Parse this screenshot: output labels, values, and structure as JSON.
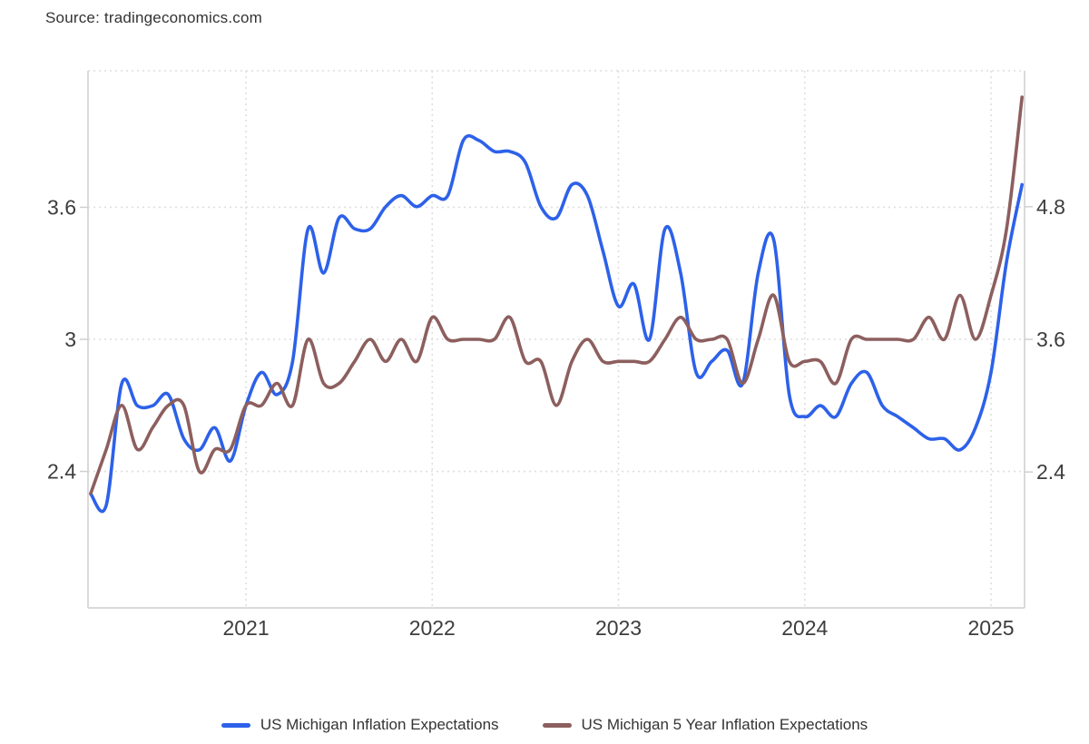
{
  "source": {
    "text": "Source: tradingeconomics.com"
  },
  "legend": {
    "items": [
      {
        "label": "US Michigan Inflation Expectations",
        "color": "#2d61e9"
      },
      {
        "label": "US Michigan 5 Year Inflation Expectations",
        "color": "#8c5f5e"
      }
    ]
  },
  "chart_data": {
    "type": "line",
    "title": "",
    "xlabel": "",
    "ylabel": "",
    "x_unit": "month",
    "x_start": "2020-03",
    "x_end": "2025-03",
    "grid": "dotted",
    "legend_position": "bottom",
    "x_tick_labels": [
      "2021",
      "2022",
      "2023",
      "2024",
      "2025"
    ],
    "x_tick_month_index": [
      10,
      22,
      34,
      46,
      58
    ],
    "left_axis": {
      "min": 1.78,
      "max": 4.22,
      "ticks": [
        3.6,
        3,
        2.4
      ],
      "tick_labels": [
        "3.6",
        "3",
        "2.4"
      ]
    },
    "right_axis": {
      "min": 1.17,
      "max": 6.03,
      "ticks": [
        4.8,
        3.6,
        2.4
      ],
      "tick_labels": [
        "4.8",
        "3.6",
        "2.4"
      ]
    },
    "series": [
      {
        "name": "US Michigan Inflation Expectations",
        "axis": "right",
        "color": "#2d61e9",
        "values": [
          2.2,
          2.1,
          3.2,
          3.0,
          3.0,
          3.1,
          2.7,
          2.6,
          2.8,
          2.5,
          3.0,
          3.3,
          3.1,
          3.4,
          4.6,
          4.2,
          4.7,
          4.6,
          4.6,
          4.8,
          4.9,
          4.8,
          4.9,
          4.9,
          5.4,
          5.4,
          5.3,
          5.3,
          5.2,
          4.8,
          4.7,
          5.0,
          4.9,
          4.4,
          3.9,
          4.1,
          3.6,
          4.6,
          4.2,
          3.3,
          3.4,
          3.5,
          3.2,
          4.2,
          4.5,
          3.1,
          2.9,
          3.0,
          2.9,
          3.2,
          3.3,
          3.0,
          2.9,
          2.8,
          2.7,
          2.7,
          2.6,
          2.8,
          3.3,
          4.3,
          5.0
        ]
      },
      {
        "name": "US Michigan 5 Year Inflation Expectations",
        "axis": "left",
        "color": "#8c5f5e",
        "values": [
          2.3,
          2.5,
          2.7,
          2.5,
          2.6,
          2.7,
          2.7,
          2.4,
          2.5,
          2.5,
          2.7,
          2.7,
          2.8,
          2.7,
          3.0,
          2.8,
          2.8,
          2.9,
          3.0,
          2.9,
          3.0,
          2.9,
          3.1,
          3.0,
          3.0,
          3.0,
          3.0,
          3.1,
          2.9,
          2.9,
          2.7,
          2.9,
          3.0,
          2.9,
          2.9,
          2.9,
          2.9,
          3.0,
          3.1,
          3.0,
          3.0,
          3.0,
          2.8,
          3.0,
          3.2,
          2.9,
          2.9,
          2.9,
          2.8,
          3.0,
          3.0,
          3.0,
          3.0,
          3.0,
          3.1,
          3.0,
          3.2,
          3.0,
          3.2,
          3.5,
          4.1
        ]
      }
    ]
  },
  "colors": {
    "background": "#ffffff",
    "grid": "#dedede",
    "border": "#dadada",
    "tick": "#cfcfcf",
    "axis_label": "#3d3d3d",
    "text": "#333333"
  }
}
